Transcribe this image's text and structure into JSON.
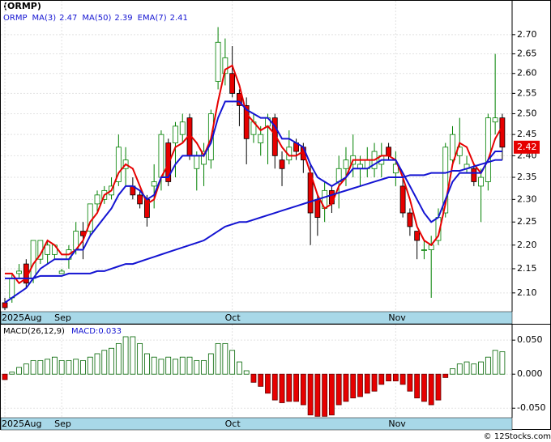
{
  "chart_data": [
    {
      "type": "candlestick",
      "title": "(ORMP)",
      "symbol": "ORMP",
      "categories": [
        "2025Aug",
        null,
        null,
        null,
        null,
        null,
        null,
        null,
        "Sep",
        null,
        null,
        null,
        null,
        null,
        null,
        null,
        null,
        null,
        null,
        null,
        null,
        null,
        null,
        null,
        null,
        null,
        null,
        null,
        null,
        null,
        null,
        null,
        "Oct",
        null,
        null,
        null,
        null,
        null,
        null,
        null,
        null,
        null,
        null,
        null,
        null,
        null,
        null,
        null,
        null,
        null,
        null,
        null,
        null,
        null,
        null,
        "Nov",
        null,
        null,
        null,
        null,
        null,
        null,
        null,
        null,
        null,
        null,
        null,
        null,
        null,
        null,
        null
      ],
      "open": [
        2.08,
        2.09,
        2.14,
        2.16,
        2.13,
        2.17,
        2.18,
        2.18,
        2.14,
        2.17,
        2.19,
        2.23,
        2.23,
        2.29,
        2.3,
        2.31,
        2.34,
        2.37,
        2.33,
        2.31,
        2.3,
        2.33,
        2.35,
        2.43,
        2.43,
        2.45,
        2.49,
        2.37,
        2.38,
        2.39,
        2.58,
        2.6,
        2.6,
        2.55,
        2.52,
        2.45,
        2.43,
        2.47,
        2.49,
        2.39,
        2.39,
        2.43,
        2.42,
        2.36,
        2.3,
        2.28,
        2.32,
        2.34,
        2.37,
        2.38,
        2.37,
        2.37,
        2.37,
        2.38,
        2.42,
        2.36,
        2.33,
        2.27,
        2.23,
        2.19,
        2.19,
        2.21,
        2.27,
        2.39,
        2.4,
        2.37,
        2.37,
        2.33,
        2.34,
        2.48,
        2.49
      ],
      "high": [
        2.09,
        2.14,
        2.16,
        2.17,
        2.21,
        2.21,
        2.21,
        2.2,
        2.15,
        2.2,
        2.25,
        2.25,
        2.29,
        2.32,
        2.33,
        2.35,
        2.45,
        2.42,
        2.35,
        2.32,
        2.31,
        2.38,
        2.46,
        2.44,
        2.48,
        2.5,
        2.5,
        2.41,
        2.43,
        2.51,
        2.72,
        2.69,
        2.67,
        2.56,
        2.54,
        2.5,
        2.47,
        2.5,
        2.5,
        2.41,
        2.46,
        2.44,
        2.43,
        2.38,
        2.31,
        2.34,
        2.33,
        2.4,
        2.42,
        2.45,
        2.4,
        2.42,
        2.43,
        2.43,
        2.43,
        2.41,
        2.35,
        2.28,
        2.23,
        2.21,
        2.22,
        2.28,
        2.43,
        2.47,
        2.49,
        2.4,
        2.38,
        2.37,
        2.5,
        2.65,
        2.5
      ],
      "low": [
        2.065,
        2.08,
        2.13,
        2.11,
        2.12,
        2.16,
        2.16,
        2.17,
        2.14,
        2.15,
        2.18,
        2.17,
        2.22,
        2.27,
        2.29,
        2.3,
        2.33,
        2.33,
        2.3,
        2.28,
        2.24,
        2.28,
        2.32,
        2.33,
        2.35,
        2.43,
        2.39,
        2.32,
        2.33,
        2.37,
        2.56,
        2.57,
        2.54,
        2.47,
        2.38,
        2.43,
        2.4,
        2.38,
        2.37,
        2.33,
        2.38,
        2.39,
        2.36,
        2.2,
        2.22,
        2.25,
        2.27,
        2.28,
        2.33,
        2.35,
        2.33,
        2.35,
        2.35,
        2.35,
        2.39,
        2.33,
        2.26,
        2.22,
        2.17,
        2.17,
        2.09,
        2.2,
        2.26,
        2.38,
        2.38,
        2.36,
        2.33,
        2.25,
        2.32,
        2.45,
        2.39
      ],
      "close": [
        2.07,
        2.13,
        2.145,
        2.12,
        2.21,
        2.21,
        2.2,
        2.2,
        2.145,
        2.19,
        2.23,
        2.22,
        2.29,
        2.31,
        2.32,
        2.33,
        2.42,
        2.39,
        2.31,
        2.29,
        2.26,
        2.34,
        2.45,
        2.34,
        2.47,
        2.48,
        2.4,
        2.4,
        2.41,
        2.5,
        2.68,
        2.64,
        2.55,
        2.52,
        2.44,
        2.48,
        2.45,
        2.49,
        2.4,
        2.37,
        2.42,
        2.41,
        2.39,
        2.27,
        2.26,
        2.32,
        2.29,
        2.37,
        2.39,
        2.4,
        2.38,
        2.39,
        2.41,
        2.4,
        2.4,
        2.38,
        2.27,
        2.24,
        2.21,
        2.19,
        2.2,
        2.26,
        2.42,
        2.45,
        2.42,
        2.38,
        2.34,
        2.35,
        2.49,
        2.49,
        2.42
      ],
      "series": [
        {
          "name": "MA(3)",
          "color": "#e60000",
          "values": [
            2.14,
            2.14,
            2.12,
            2.13,
            2.16,
            2.18,
            2.21,
            2.2,
            2.18,
            2.18,
            2.19,
            2.21,
            2.25,
            2.27,
            2.31,
            2.32,
            2.36,
            2.38,
            2.37,
            2.33,
            2.29,
            2.3,
            2.35,
            2.38,
            2.42,
            2.43,
            2.45,
            2.43,
            2.4,
            2.44,
            2.53,
            2.61,
            2.62,
            2.57,
            2.5,
            2.48,
            2.46,
            2.47,
            2.45,
            2.42,
            2.4,
            2.4,
            2.41,
            2.36,
            2.31,
            2.28,
            2.29,
            2.33,
            2.35,
            2.39,
            2.39,
            2.39,
            2.39,
            2.4,
            2.4,
            2.39,
            2.35,
            2.3,
            2.24,
            2.21,
            2.2,
            2.22,
            2.29,
            2.38,
            2.43,
            2.42,
            2.38,
            2.36,
            2.39,
            2.44,
            2.47
          ]
        },
        {
          "name": "MA(50)",
          "color": "#1414d2",
          "values": [
            2.13,
            2.13,
            2.13,
            2.13,
            2.13,
            2.135,
            2.135,
            2.135,
            2.135,
            2.14,
            2.14,
            2.14,
            2.14,
            2.145,
            2.145,
            2.15,
            2.155,
            2.16,
            2.16,
            2.165,
            2.17,
            2.175,
            2.18,
            2.185,
            2.19,
            2.195,
            2.2,
            2.205,
            2.21,
            2.22,
            2.23,
            2.24,
            2.245,
            2.25,
            2.25,
            2.255,
            2.26,
            2.265,
            2.27,
            2.275,
            2.28,
            2.285,
            2.29,
            2.295,
            2.3,
            2.305,
            2.31,
            2.315,
            2.32,
            2.325,
            2.33,
            2.335,
            2.34,
            2.345,
            2.35,
            2.35,
            2.35,
            2.355,
            2.355,
            2.355,
            2.36,
            2.36,
            2.36,
            2.365,
            2.365,
            2.37,
            2.375,
            2.38,
            2.385,
            2.39,
            2.39
          ]
        },
        {
          "name": "EMA(7)",
          "color": "#1414d2",
          "values": [
            2.08,
            2.09,
            2.1,
            2.11,
            2.13,
            2.15,
            2.16,
            2.17,
            2.17,
            2.17,
            2.19,
            2.19,
            2.22,
            2.24,
            2.26,
            2.28,
            2.31,
            2.33,
            2.33,
            2.32,
            2.3,
            2.31,
            2.35,
            2.35,
            2.38,
            2.4,
            2.4,
            2.4,
            2.4,
            2.43,
            2.49,
            2.53,
            2.53,
            2.53,
            2.51,
            2.5,
            2.49,
            2.49,
            2.47,
            2.44,
            2.44,
            2.43,
            2.42,
            2.38,
            2.35,
            2.34,
            2.33,
            2.34,
            2.35,
            2.37,
            2.37,
            2.37,
            2.38,
            2.39,
            2.39,
            2.39,
            2.36,
            2.33,
            2.3,
            2.27,
            2.25,
            2.26,
            2.3,
            2.34,
            2.36,
            2.36,
            2.36,
            2.36,
            2.39,
            2.41,
            2.41
          ]
        }
      ],
      "ylim": [
        2.062,
        2.749
      ],
      "log_scale": true,
      "yticks": [
        {
          "value": 2.1,
          "label": "2.10"
        },
        {
          "value": 2.15,
          "label": "2.15"
        },
        {
          "value": 2.2,
          "label": "2.20"
        },
        {
          "value": 2.25,
          "label": "2.25"
        },
        {
          "value": 2.3,
          "label": "2.30"
        },
        {
          "value": 2.35,
          "label": "2.35"
        },
        {
          "value": 2.4,
          "label": "2.40"
        },
        {
          "value": 2.45,
          "label": "2.45"
        },
        {
          "value": 2.5,
          "label": "2.50"
        },
        {
          "value": 2.55,
          "label": "2.55"
        },
        {
          "value": 2.6,
          "label": "2.60"
        },
        {
          "value": 2.65,
          "label": "2.65"
        },
        {
          "value": 2.7,
          "label": "2.70"
        }
      ],
      "up_color": "#008000",
      "down_color": "#e60000",
      "grid": true
    },
    {
      "type": "bar",
      "title": "MACD(26,12,9)",
      "readout_label": "MACD:",
      "categories": [
        "2025Aug",
        null,
        null,
        null,
        null,
        null,
        null,
        null,
        "Sep",
        null,
        null,
        null,
        null,
        null,
        null,
        null,
        null,
        null,
        null,
        null,
        null,
        null,
        null,
        null,
        null,
        null,
        null,
        null,
        null,
        null,
        null,
        null,
        "Oct",
        null,
        null,
        null,
        null,
        null,
        null,
        null,
        null,
        null,
        null,
        null,
        null,
        null,
        null,
        null,
        null,
        null,
        null,
        null,
        null,
        null,
        null,
        "Nov",
        null,
        null,
        null,
        null,
        null,
        null,
        null,
        null,
        null,
        null,
        null,
        null,
        null,
        null,
        null
      ],
      "values": [
        -0.008,
        0.003,
        0.01,
        0.015,
        0.02,
        0.02,
        0.022,
        0.025,
        0.02,
        0.02,
        0.022,
        0.02,
        0.025,
        0.03,
        0.035,
        0.038,
        0.045,
        0.055,
        0.055,
        0.045,
        0.03,
        0.025,
        0.022,
        0.025,
        0.022,
        0.025,
        0.025,
        0.02,
        0.02,
        0.03,
        0.045,
        0.045,
        0.035,
        0.018,
        0.005,
        -0.012,
        -0.018,
        -0.028,
        -0.038,
        -0.042,
        -0.04,
        -0.04,
        -0.045,
        -0.06,
        -0.062,
        -0.062,
        -0.06,
        -0.045,
        -0.04,
        -0.035,
        -0.033,
        -0.028,
        -0.025,
        -0.015,
        -0.01,
        -0.01,
        -0.015,
        -0.025,
        -0.035,
        -0.04,
        -0.045,
        -0.038,
        -0.005,
        0.008,
        0.015,
        0.018,
        0.015,
        0.018,
        0.025,
        0.035,
        0.033
      ],
      "ylim": [
        -0.064,
        0.074
      ],
      "log_scale": false,
      "yticks": [
        {
          "value": -0.05,
          "label": "-0.050"
        },
        {
          "value": 0,
          "label": "0.000"
        },
        {
          "value": 0.05,
          "label": "0.050"
        }
      ],
      "up_color": "#006400",
      "down_color": "#e60000",
      "grid": true
    }
  ],
  "footer": "© 12Stocks.com"
}
